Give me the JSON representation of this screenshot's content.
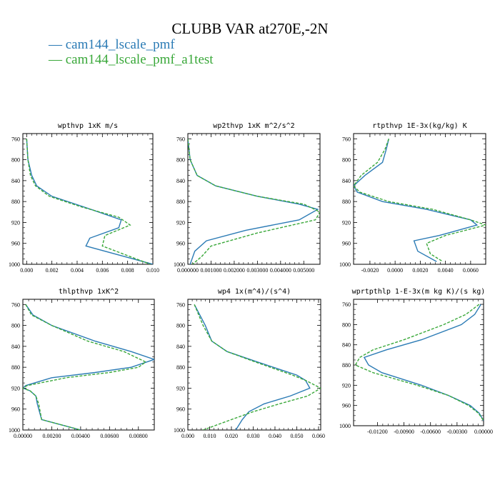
{
  "title": "CLUBB VAR at270E,-2N",
  "legend": [
    {
      "label": "cam144_lscale_pmf",
      "color": "#2b7bb5"
    },
    {
      "label": "cam144_lscale_pmf_a1test",
      "color": "#3aa83a"
    }
  ],
  "chart_data": [
    {
      "type": "line",
      "title": "wpthvp  1xK m/s",
      "xlim": [
        -0.0003,
        0.01
      ],
      "xticks": [
        0.0,
        0.002,
        0.004,
        0.006,
        0.008,
        0.01
      ],
      "xticklabels": [
        "0.000",
        "0.002",
        "0.004",
        "0.006",
        "0.008",
        "0.010"
      ],
      "ylim": [
        1000,
        750
      ],
      "yticks": [
        760,
        800,
        840,
        880,
        920,
        960,
        1000
      ],
      "series": [
        {
          "y": [
            760,
            800,
            830,
            850,
            870,
            890,
            915,
            930,
            950,
            965,
            1000
          ],
          "x": [
            0.0,
            0.0001,
            0.0004,
            0.0008,
            0.002,
            0.0045,
            0.0075,
            0.0073,
            0.005,
            0.0047,
            0.01
          ]
        },
        {
          "y": [
            760,
            800,
            830,
            850,
            870,
            890,
            910,
            925,
            945,
            965,
            1000
          ],
          "x": [
            0.0,
            0.0001,
            0.0003,
            0.0007,
            0.0018,
            0.0043,
            0.0073,
            0.0082,
            0.0062,
            0.006,
            0.0098
          ]
        }
      ]
    },
    {
      "type": "line",
      "title": "wp2thvp  1xK m^2/s^2",
      "xlim": [
        0.0,
        0.0057
      ],
      "xticks": [
        0.0,
        0.001,
        0.002,
        0.003,
        0.004,
        0.005
      ],
      "xticklabels": [
        "0.000000",
        "0.001000",
        "0.002000",
        "0.003000",
        "0.004000",
        "0.005000"
      ],
      "ylim": [
        1000,
        750
      ],
      "yticks": [
        760,
        800,
        840,
        880,
        920,
        960,
        1000
      ],
      "series": [
        {
          "y": [
            760,
            800,
            830,
            850,
            870,
            885,
            895,
            915,
            935,
            955,
            975,
            1000
          ],
          "x": [
            0.0,
            0.0001,
            0.0004,
            0.0012,
            0.003,
            0.0048,
            0.0056,
            0.0048,
            0.0025,
            0.0008,
            0.0003,
            0.0001
          ]
        },
        {
          "y": [
            760,
            800,
            830,
            850,
            870,
            885,
            900,
            915,
            940,
            965,
            985,
            1000
          ],
          "x": [
            0.0,
            0.0001,
            0.0004,
            0.0012,
            0.003,
            0.005,
            0.0057,
            0.0055,
            0.003,
            0.001,
            0.0006,
            0.0002
          ]
        }
      ]
    },
    {
      "type": "line",
      "title": "rtpthvp  1E-3x(kg/kg) K",
      "xlim": [
        -0.0033,
        0.0072
      ],
      "xticks": [
        -0.002,
        0.0,
        0.002,
        0.004,
        0.006
      ],
      "xticklabels": [
        "-0.0020",
        "0.0000",
        "0.0020",
        "0.0040",
        "0.0060"
      ],
      "ylim": [
        1000,
        750
      ],
      "yticks": [
        760,
        800,
        840,
        880,
        920,
        960,
        1000
      ],
      "series": [
        {
          "y": [
            760,
            780,
            805,
            830,
            850,
            862,
            880,
            895,
            915,
            925,
            945,
            955,
            975,
            995
          ],
          "x": [
            -0.0005,
            -0.0007,
            -0.001,
            -0.0024,
            -0.0033,
            -0.003,
            -0.001,
            0.0025,
            0.006,
            0.0065,
            0.0035,
            0.0015,
            0.0018,
            0.0033
          ]
        },
        {
          "y": [
            760,
            780,
            805,
            830,
            850,
            862,
            880,
            895,
            915,
            925,
            945,
            960,
            980,
            995
          ],
          "x": [
            -0.0005,
            -0.0008,
            -0.0014,
            -0.0027,
            -0.0033,
            -0.0028,
            -0.0005,
            0.003,
            0.006,
            0.0072,
            0.004,
            0.0025,
            0.0028,
            0.0038
          ]
        }
      ]
    },
    {
      "type": "line",
      "title": "thlpthvp  1xK^2",
      "xlim": [
        0.0,
        0.0091
      ],
      "xticks": [
        0.0,
        0.002,
        0.004,
        0.006,
        0.008
      ],
      "xticklabels": [
        "0.00000",
        "0.00200",
        "0.00400",
        "0.00600",
        "0.00800"
      ],
      "ylim": [
        1000,
        750
      ],
      "yticks": [
        760,
        800,
        840,
        880,
        920,
        960,
        1000
      ],
      "series": [
        {
          "y": [
            760,
            780,
            800,
            830,
            850,
            865,
            880,
            890,
            900,
            915,
            920,
            925,
            935,
            950,
            980,
            1000
          ],
          "x": [
            0.0002,
            0.0007,
            0.002,
            0.005,
            0.0075,
            0.0091,
            0.0075,
            0.005,
            0.002,
            0.0002,
            0.0,
            0.0005,
            0.0009,
            0.001,
            0.0013,
            0.004
          ]
        },
        {
          "y": [
            760,
            780,
            800,
            830,
            850,
            870,
            880,
            890,
            900,
            915,
            920,
            925,
            935,
            950,
            980,
            1000
          ],
          "x": [
            0.0002,
            0.0006,
            0.002,
            0.0045,
            0.007,
            0.0085,
            0.008,
            0.006,
            0.003,
            0.0003,
            0.0,
            0.0005,
            0.0009,
            0.0011,
            0.0013,
            0.004
          ]
        }
      ]
    },
    {
      "type": "line",
      "title": "wp4  1x(m^4)/(s^4)",
      "xlim": [
        0.0,
        0.061
      ],
      "xticks": [
        0.0,
        0.01,
        0.02,
        0.03,
        0.04,
        0.05,
        0.06
      ],
      "xticklabels": [
        "0.000",
        "0.010",
        "0.020",
        "0.030",
        "0.040",
        "0.050",
        "0.060"
      ],
      "ylim": [
        1000,
        750
      ],
      "yticks": [
        760,
        800,
        840,
        880,
        920,
        960,
        1000
      ],
      "series": [
        {
          "y": [
            760,
            800,
            830,
            850,
            870,
            895,
            905,
            920,
            935,
            950,
            965,
            980,
            1000
          ],
          "x": [
            0.003,
            0.008,
            0.011,
            0.018,
            0.032,
            0.05,
            0.054,
            0.056,
            0.047,
            0.035,
            0.028,
            0.025,
            0.022
          ]
        },
        {
          "y": [
            760,
            800,
            830,
            850,
            870,
            895,
            905,
            920,
            935,
            950,
            965,
            980,
            1000
          ],
          "x": [
            0.003,
            0.007,
            0.011,
            0.018,
            0.031,
            0.048,
            0.054,
            0.061,
            0.055,
            0.042,
            0.03,
            0.02,
            0.007
          ]
        }
      ]
    },
    {
      "type": "line",
      "title": "wprtpthlp  1-E-3x(m kg K)/(s kg)",
      "xlim": [
        -0.0147,
        0.0
      ],
      "xticks": [
        -0.012,
        -0.009,
        -0.006,
        -0.003,
        0.0
      ],
      "xticklabels": [
        "-0.01200",
        "-0.00900",
        "-0.00600",
        "-0.00300",
        "0.00000"
      ],
      "ylim": [
        1000,
        750
      ],
      "yticks": [
        760,
        800,
        840,
        880,
        920,
        960,
        1000
      ],
      "series": [
        {
          "y": [
            760,
            780,
            800,
            830,
            850,
            865,
            880,
            895,
            920,
            940,
            960,
            975,
            990
          ],
          "x": [
            -0.0003,
            -0.001,
            -0.0025,
            -0.007,
            -0.011,
            -0.0135,
            -0.013,
            -0.0115,
            -0.007,
            -0.004,
            -0.0015,
            -0.0005,
            0.0
          ]
        },
        {
          "y": [
            760,
            780,
            800,
            830,
            850,
            865,
            880,
            895,
            920,
            940,
            960,
            975,
            990
          ],
          "x": [
            -0.0005,
            -0.002,
            -0.0045,
            -0.009,
            -0.0125,
            -0.014,
            -0.0145,
            -0.0125,
            -0.0075,
            -0.004,
            -0.0017,
            -0.0006,
            0.0
          ]
        }
      ]
    }
  ]
}
